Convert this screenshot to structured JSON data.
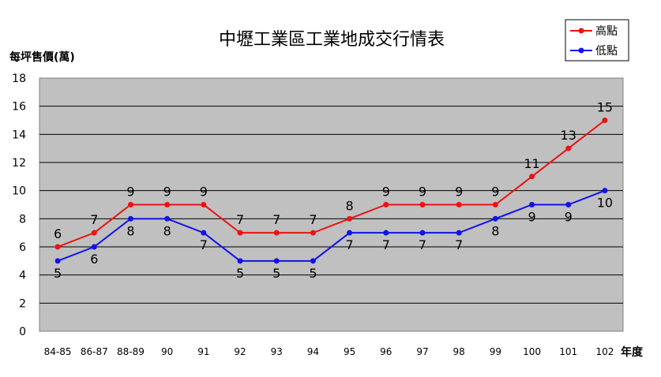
{
  "chart_data": {
    "type": "line",
    "title": "中壢工業區工業地成交行情表",
    "ylabel": "每坪售價(萬)",
    "xlabel": "年度",
    "categories": [
      "84-85",
      "86-87",
      "88-89",
      "90",
      "91",
      "92",
      "93",
      "94",
      "95",
      "96",
      "97",
      "98",
      "99",
      "100",
      "101",
      "102"
    ],
    "ylim": [
      0,
      18
    ],
    "yticks": [
      0,
      2,
      4,
      6,
      8,
      10,
      12,
      14,
      16,
      18
    ],
    "grid": true,
    "legend_position": "top-right",
    "series": [
      {
        "name": "高點",
        "color": "#ee1111",
        "values": [
          6,
          7,
          9,
          9,
          9,
          7,
          7,
          7,
          8,
          9,
          9,
          9,
          9,
          11,
          13,
          15
        ]
      },
      {
        "name": "低點",
        "color": "#1111ee",
        "values": [
          5,
          6,
          8,
          8,
          7,
          5,
          5,
          5,
          7,
          7,
          7,
          7,
          8,
          9,
          9,
          10
        ]
      }
    ]
  },
  "colors": {
    "plot_background": "#c0c0c0",
    "gridline": "#000000"
  }
}
